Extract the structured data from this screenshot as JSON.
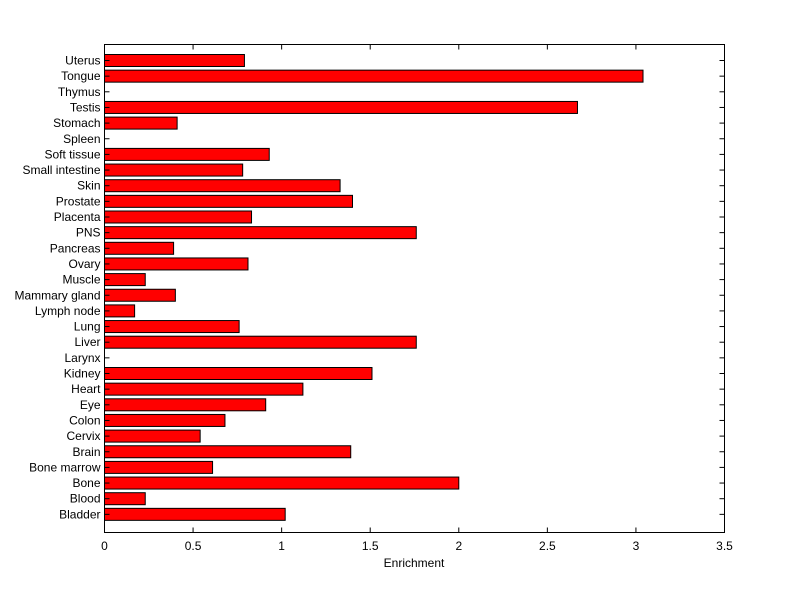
{
  "chart_data": {
    "type": "bar",
    "orientation": "horizontal",
    "title": "",
    "xlabel": "Enrichment",
    "ylabel": "",
    "xlim": [
      0,
      3.5
    ],
    "xticks": [
      0,
      0.5,
      1,
      1.5,
      2,
      2.5,
      3,
      3.5
    ],
    "xtick_labels": [
      "0",
      "0.5",
      "1",
      "1.5",
      "2",
      "2.5",
      "3",
      "3.5"
    ],
    "grid": false,
    "legend": "none",
    "bar_color": "#ff0000",
    "categories": [
      "Uterus",
      "Tongue",
      "Thymus",
      "Testis",
      "Stomach",
      "Spleen",
      "Soft tissue",
      "Small intestine",
      "Skin",
      "Prostate",
      "Placenta",
      "PNS",
      "Pancreas",
      "Ovary",
      "Muscle",
      "Mammary gland",
      "Lymph node",
      "Lung",
      "Liver",
      "Larynx",
      "Kidney",
      "Heart",
      "Eye",
      "Colon",
      "Cervix",
      "Brain",
      "Bone marrow",
      "Bone",
      "Blood",
      "Bladder"
    ],
    "values": [
      0.79,
      3.04,
      0.0,
      2.67,
      0.41,
      0.0,
      0.93,
      0.78,
      1.33,
      1.4,
      0.83,
      1.76,
      0.39,
      0.81,
      0.23,
      0.4,
      0.17,
      0.76,
      1.76,
      0.0,
      1.51,
      1.12,
      0.91,
      0.68,
      0.54,
      1.39,
      0.61,
      2.0,
      0.23,
      1.02
    ]
  }
}
